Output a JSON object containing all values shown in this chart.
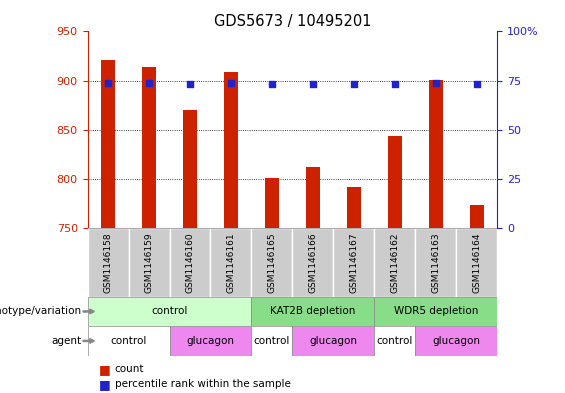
{
  "title": "GDS5673 / 10495201",
  "samples": [
    "GSM1146158",
    "GSM1146159",
    "GSM1146160",
    "GSM1146161",
    "GSM1146165",
    "GSM1146166",
    "GSM1146167",
    "GSM1146162",
    "GSM1146163",
    "GSM1146164"
  ],
  "counts": [
    921,
    914,
    870,
    909,
    801,
    812,
    792,
    844,
    901,
    773
  ],
  "percentiles": [
    74,
    74,
    73,
    74,
    73,
    73,
    73,
    73,
    74,
    73
  ],
  "ylim_left": [
    750,
    950
  ],
  "ylim_right": [
    0,
    100
  ],
  "yticks_left": [
    750,
    800,
    850,
    900,
    950
  ],
  "yticks_right": [
    0,
    25,
    50,
    75,
    100
  ],
  "ytick_labels_right": [
    "0",
    "25",
    "50",
    "75",
    "100%"
  ],
  "bar_color": "#cc2200",
  "dot_color": "#2222cc",
  "genotype_groups": [
    {
      "label": "control",
      "start": 0,
      "end": 4,
      "color": "#ccffcc"
    },
    {
      "label": "KAT2B depletion",
      "start": 4,
      "end": 7,
      "color": "#88dd88"
    },
    {
      "label": "WDR5 depletion",
      "start": 7,
      "end": 10,
      "color": "#88dd88"
    }
  ],
  "agent_groups": [
    {
      "label": "control",
      "start": 0,
      "end": 2,
      "color": "#ffffff"
    },
    {
      "label": "glucagon",
      "start": 2,
      "end": 4,
      "color": "#ee88ee"
    },
    {
      "label": "control",
      "start": 4,
      "end": 5,
      "color": "#ffffff"
    },
    {
      "label": "glucagon",
      "start": 5,
      "end": 7,
      "color": "#ee88ee"
    },
    {
      "label": "control",
      "start": 7,
      "end": 8,
      "color": "#ffffff"
    },
    {
      "label": "glucagon",
      "start": 8,
      "end": 10,
      "color": "#ee88ee"
    }
  ],
  "legend_count_label": "count",
  "legend_percentile_label": "percentile rank within the sample",
  "genotype_label": "genotype/variation",
  "agent_label": "agent",
  "bar_width": 0.35,
  "sample_box_color": "#cccccc"
}
